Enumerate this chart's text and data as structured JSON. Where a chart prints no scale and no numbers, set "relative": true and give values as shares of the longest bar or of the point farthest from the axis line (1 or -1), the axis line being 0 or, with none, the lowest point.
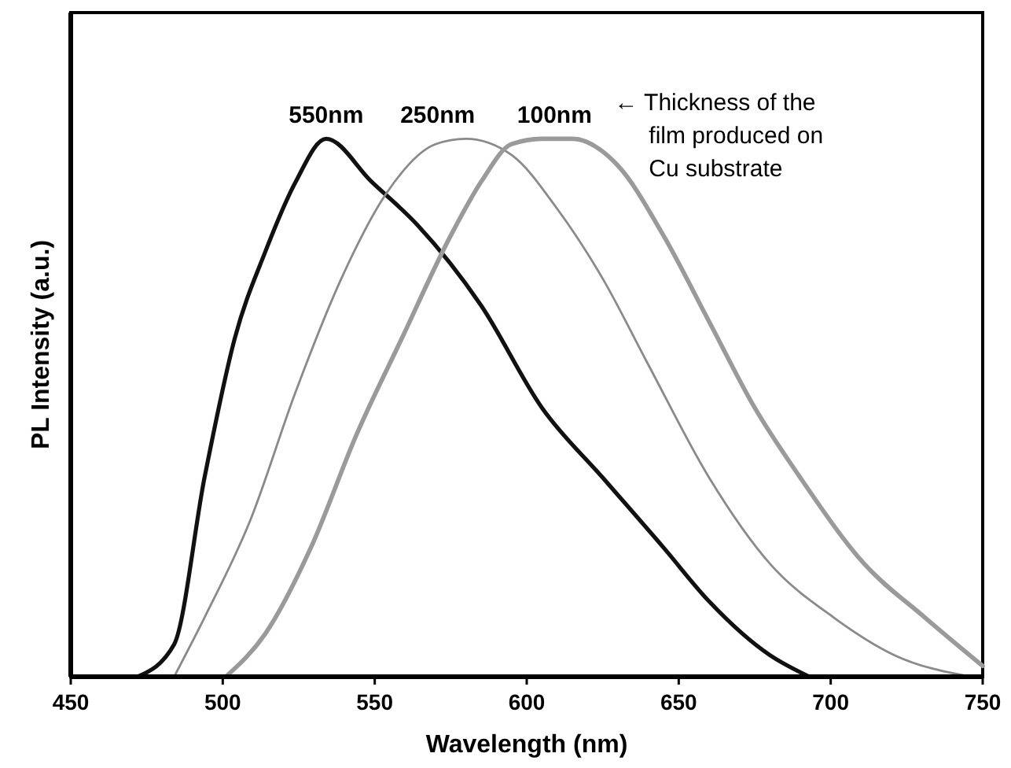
{
  "chart_data": {
    "type": "line",
    "relative": true,
    "xlabel": "Wavelength (nm)",
    "ylabel": "PL Intensity (a.u.)",
    "xlim": [
      450,
      750
    ],
    "xticks": [
      450,
      500,
      550,
      600,
      650,
      700,
      750
    ],
    "grid": false,
    "marker": "none",
    "line_style": "solid",
    "annotations": [
      "← Thickness of the film produced on Cu substrate"
    ],
    "series": [
      {
        "name": "550nm",
        "color": "#111111",
        "x": [
          472,
          484,
          494,
          504,
          514,
          524,
          534,
          549,
          564,
          585,
          605,
          625,
          645,
          660,
          680,
          693
        ],
        "values": [
          0,
          0.06,
          0.37,
          0.63,
          0.79,
          0.92,
          1,
          0.92,
          0.84,
          0.69,
          0.5,
          0.37,
          0.24,
          0.14,
          0.04,
          0
        ]
      },
      {
        "name": "250nm",
        "color": "#8a8a8a",
        "x": [
          484,
          494,
          509,
          524,
          539,
          554,
          570,
          580,
          595,
          610,
          625,
          640,
          660,
          680,
          701,
          721,
          746
        ],
        "values": [
          0,
          0.11,
          0.29,
          0.53,
          0.74,
          0.9,
          0.99,
          1,
          0.97,
          0.87,
          0.74,
          0.58,
          0.37,
          0.21,
          0.11,
          0.04,
          0
        ]
      },
      {
        "name": "100nm",
        "color": "#9a9a9a",
        "x": [
          501,
          514,
          529,
          544,
          559,
          575,
          585,
          595,
          605,
          615,
          630,
          645,
          660,
          675,
          690,
          711,
          731,
          750
        ],
        "values": [
          0,
          0.08,
          0.24,
          0.45,
          0.63,
          0.82,
          0.92,
          0.99,
          1,
          1,
          0.95,
          0.82,
          0.66,
          0.5,
          0.37,
          0.21,
          0.11,
          0.02
        ]
      }
    ]
  }
}
